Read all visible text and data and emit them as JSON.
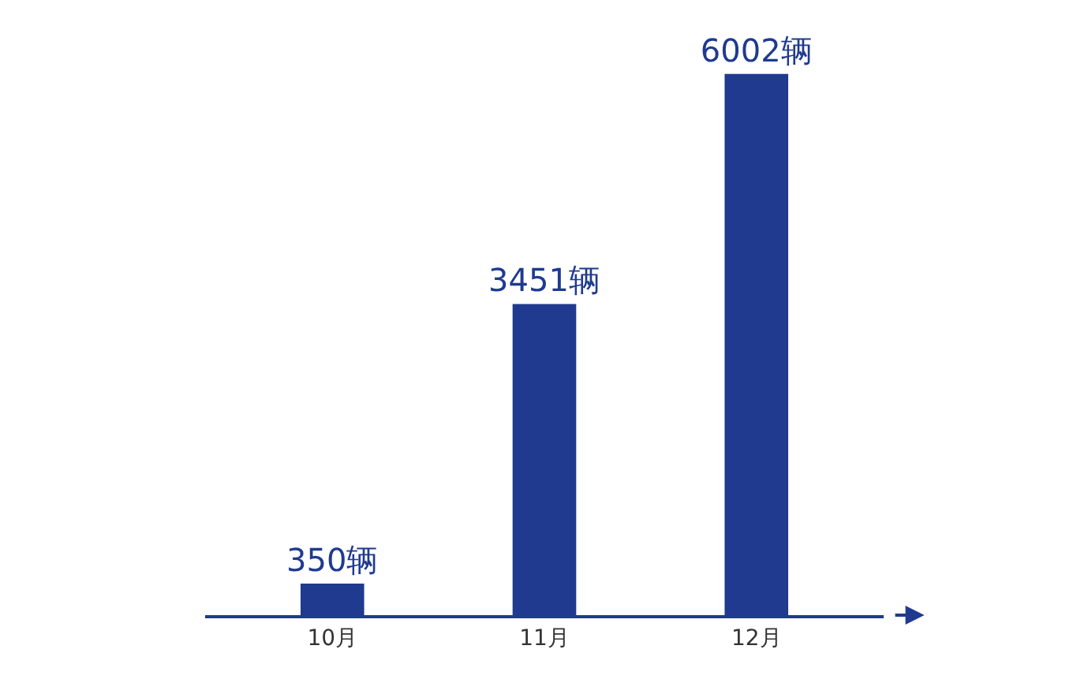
{
  "chart_data": {
    "type": "bar",
    "categories": [
      "10月",
      "11月",
      "12月"
    ],
    "values": [
      350,
      3451,
      6002
    ],
    "value_labels": [
      "350辆",
      "3451辆",
      "6002辆"
    ],
    "color": "#1f3a8f"
  }
}
